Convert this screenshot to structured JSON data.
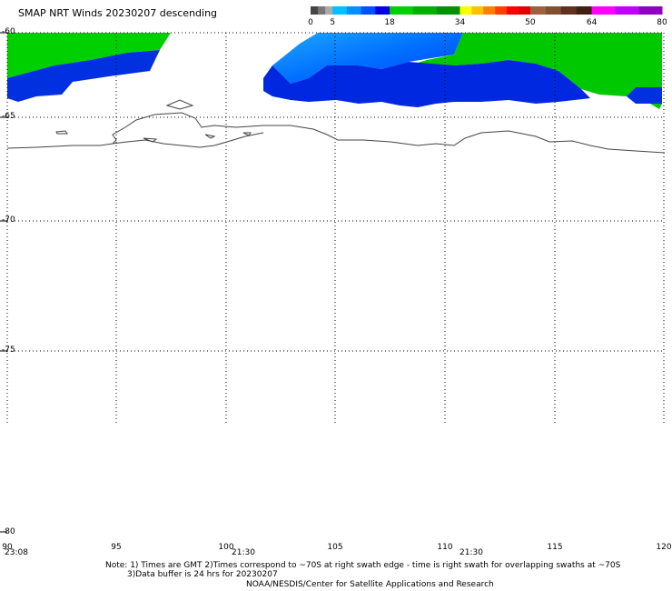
{
  "title": "SMAP NRT Winds  20230207 descending",
  "colorbar": {
    "ticks": [
      {
        "label": "0",
        "value": 0
      },
      {
        "label": "5",
        "value": 5
      },
      {
        "label": "18",
        "value": 18
      },
      {
        "label": "34",
        "value": 34
      },
      {
        "label": "50",
        "value": 50
      },
      {
        "label": "64",
        "value": 64
      },
      {
        "label": "80",
        "value": 80
      }
    ],
    "colors": [
      "#444444",
      "#777777",
      "#aaaaaa",
      "#00c0ff",
      "#0090ff",
      "#0050ff",
      "#0000e0",
      "#00d000",
      "#00b000",
      "#009000",
      "#ffff00",
      "#ffc000",
      "#ff8000",
      "#ff4000",
      "#ff0000",
      "#e00000",
      "#a06040",
      "#805030",
      "#603020",
      "#402010",
      "#ff00ff",
      "#c000ff",
      "#9000c0"
    ]
  },
  "map": {
    "lon_range": [
      90,
      120
    ],
    "lat_range": [
      -80,
      -60
    ],
    "lat_labels": [
      "-60",
      "-65",
      "-70",
      "-75",
      "-80"
    ],
    "lon_labels": [
      "90",
      "95",
      "100",
      "105",
      "110",
      "115",
      "120"
    ],
    "swath_times": [
      {
        "label": "23:08",
        "lon": 90
      },
      {
        "label": "21:30",
        "lon": 100
      },
      {
        "label": "21:30",
        "lon": 110
      }
    ]
  },
  "notes": {
    "line1": "Note: 1) Times are GMT 2)Times correspond to ~70S at right swath edge - time is right swath for overlapping swaths at ~70S",
    "line2": "3)Data buffer is 24 hrs for 20230207",
    "line3": "NOAA/NESDIS/Center for Satellite Applications and Research"
  }
}
